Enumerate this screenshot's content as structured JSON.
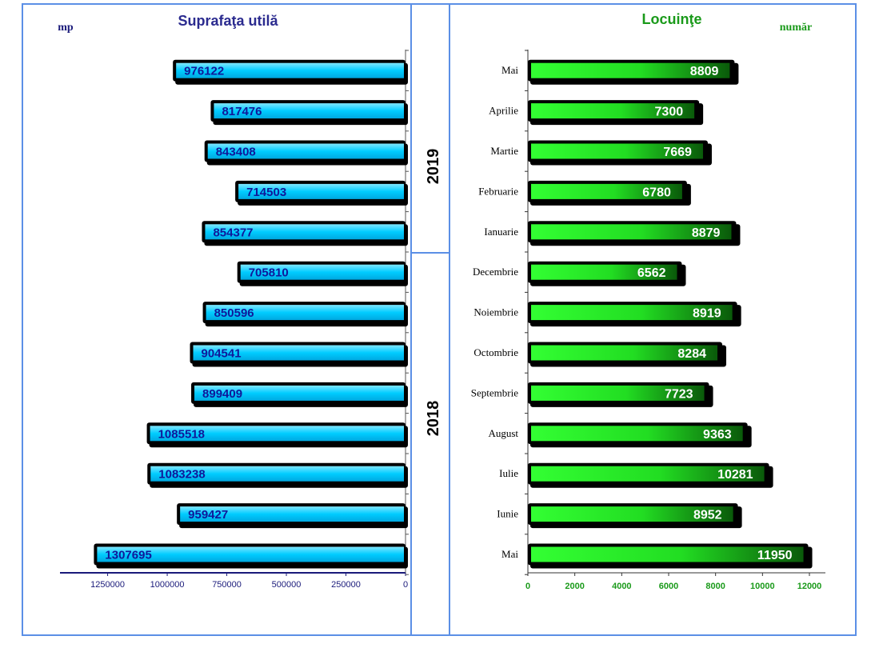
{
  "chart_data": [
    {
      "type": "bar",
      "orientation": "horizontal-reversed",
      "title": "Suprafaţa utilă",
      "unit_label": "mp",
      "xlim": [
        0,
        1450000
      ],
      "x_ticks": [
        0,
        250000,
        500000,
        750000,
        1000000,
        1250000
      ],
      "x_tick_labels": [
        "0",
        "250000",
        "500000",
        "750000",
        "1000000",
        "1250000"
      ],
      "values": [
        976122,
        817476,
        843408,
        714503,
        854377,
        705810,
        850596,
        904541,
        899409,
        1085518,
        1083238,
        959427,
        1307695
      ],
      "colors": {
        "bar": "#00ccff",
        "label": "#10189a",
        "axis": "#1a1a7a"
      }
    },
    {
      "type": "bar",
      "orientation": "horizontal",
      "title": "Locuinţe",
      "unit_label": "număr",
      "xlim": [
        0,
        12800
      ],
      "x_ticks": [
        0,
        2000,
        4000,
        6000,
        8000,
        10000,
        12000
      ],
      "x_tick_labels": [
        "0",
        "2000",
        "4000",
        "6000",
        "8000",
        "10000",
        "12000"
      ],
      "categories": [
        "Mai",
        "Aprilie",
        "Martie",
        "Februarie",
        "Ianuarie",
        "Decembrie",
        "Noiembrie",
        "Octombrie",
        "Septembrie",
        "August",
        "Iulie",
        "Iunie",
        "Mai"
      ],
      "values": [
        8809,
        7300,
        7669,
        6780,
        8879,
        6562,
        8919,
        8284,
        7723,
        9363,
        10281,
        8952,
        11950
      ],
      "colors": {
        "bar": "#22dd22",
        "label": "#ffffff",
        "title": "#1a9a1a",
        "ticks": "#1a9a1a"
      }
    }
  ],
  "years": [
    {
      "label": "2019"
    },
    {
      "label": "2018"
    }
  ],
  "colors": {
    "left_title": "#2b2b8f",
    "unit_left": "#1a1a7a",
    "panel_border": "#5b8fe6"
  }
}
